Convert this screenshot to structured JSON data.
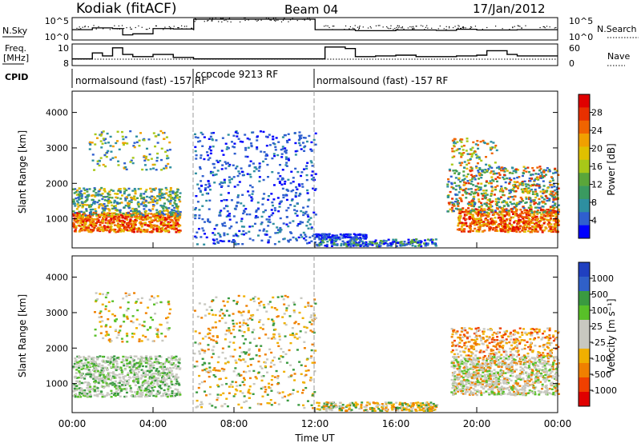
{
  "header": {
    "station": "Kodiak (fitACF)",
    "beam": "Beam 04",
    "date": "17/Jan/2012"
  },
  "side_labels": {
    "nsky": "N.Sky",
    "freq_line1": "Freq.",
    "freq_line2": "[MHz]",
    "cpid": "CPID",
    "nsearch": "N.Search",
    "nave": "Nave"
  },
  "colors": {
    "power": [
      "#0000ff",
      "#2f5fcf",
      "#2e8fa0",
      "#3a9a60",
      "#5aa63a",
      "#a8c818",
      "#e0c000",
      "#f0a000",
      "#f06400",
      "#e83000",
      "#e00000"
    ],
    "velocity": [
      "#2040c0",
      "#3060c8",
      "#3a9a40",
      "#58c028",
      "#c8c8c0",
      "#c8c8c0",
      "#f0b000",
      "#f08000",
      "#f04000",
      "#e00000"
    ]
  },
  "chart_data": [
    {
      "type": "line",
      "panel": "nsky-nsearch",
      "ylabel_left": "N.Sky",
      "ylabel_right": "N.Search",
      "left_ticks": [
        "10^5",
        "10^0"
      ],
      "right_ticks": [
        "10^5",
        "10^0"
      ],
      "series": [
        {
          "name": "N.Sky",
          "x": [
            0,
            1,
            2,
            2.5,
            3,
            4,
            5,
            6,
            6.01,
            12,
            12.01,
            14,
            16,
            18,
            19,
            20,
            22,
            24
          ],
          "y": [
            2.5,
            3,
            2.8,
            1,
            1.3,
            2.8,
            2.7,
            2.5,
            5.5,
            5.5,
            2.5,
            2.2,
            2.4,
            2.3,
            2.6,
            2.4,
            2.5,
            2.5
          ]
        }
      ]
    },
    {
      "type": "line",
      "panel": "freq-nave",
      "ylabel_left": "Freq. [MHz]",
      "ylabel_right": "Nave",
      "left_ticks": [
        "10",
        "8"
      ],
      "right_ticks": [
        "60",
        "0"
      ],
      "series": [
        {
          "x": [
            0,
            1,
            1.5,
            2,
            2.5,
            3,
            4,
            5,
            6,
            12,
            12.5,
            13.5,
            14,
            15,
            16,
            17,
            18,
            19,
            20,
            20.5,
            21.5,
            22,
            24
          ],
          "y": [
            8.8,
            9.6,
            9.2,
            10.3,
            9.4,
            9.1,
            9.4,
            9.0,
            8.8,
            8.8,
            10.4,
            10.2,
            9.1,
            9.2,
            9.3,
            9.1,
            9.1,
            9.2,
            9.3,
            9.9,
            9.4,
            9.2,
            9.2
          ]
        }
      ]
    },
    {
      "type": "table",
      "panel": "cpid",
      "segments": [
        {
          "start": 0,
          "end": 6,
          "label": "normalsound (fast) -157 RF"
        },
        {
          "start": 6,
          "end": 12,
          "label": "ccpcode 9213 RF"
        },
        {
          "start": 12,
          "end": 24,
          "label": "normalsound (fast) -157 RF"
        }
      ]
    },
    {
      "type": "heatmap",
      "panel": "power",
      "ylabel": "Slant Range [km]",
      "ylim": [
        180,
        4600
      ],
      "yticks": [
        1000,
        2000,
        3000,
        4000
      ],
      "colorbar_label": "Power [dB]",
      "colorbar_ticks": [
        "4",
        "8",
        "12",
        "16",
        "20",
        "24",
        "28"
      ]
    },
    {
      "type": "heatmap",
      "panel": "velocity",
      "ylabel": "Slant Range [km]",
      "ylim": [
        180,
        4600
      ],
      "yticks": [
        1000,
        2000,
        3000,
        4000
      ],
      "colorbar_label": "Velocity [m s⁻¹]",
      "colorbar_ticks": [
        "1000",
        "500",
        "100",
        "25",
        "-25",
        "-100",
        "-500",
        "-1000"
      ],
      "xlabel": "Time UT",
      "xticks": [
        "00:00",
        "04:00",
        "08:00",
        "12:00",
        "16:00",
        "20:00",
        "00:00"
      ]
    }
  ]
}
